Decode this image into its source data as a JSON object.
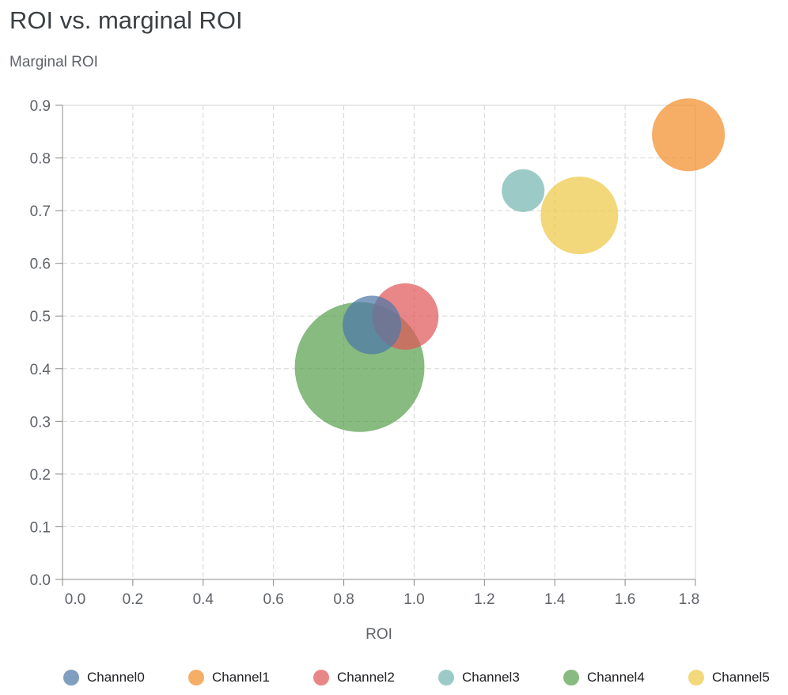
{
  "chart_data": {
    "type": "scatter",
    "subtype": "bubble",
    "title": "ROI vs. marginal ROI",
    "xlabel": "ROI",
    "ylabel": "Marginal ROI",
    "xlim": [
      0,
      1.8
    ],
    "ylim": [
      0,
      0.9
    ],
    "xticks": [
      "0.0",
      "0.2",
      "0.4",
      "0.6",
      "0.8",
      "1.0",
      "1.2",
      "1.4",
      "1.6",
      "1.8"
    ],
    "yticks": [
      "0.0",
      "0.1",
      "0.2",
      "0.3",
      "0.4",
      "0.5",
      "0.6",
      "0.7",
      "0.8",
      "0.9"
    ],
    "grid": true,
    "legend_position": "bottom",
    "series": [
      {
        "name": "Channel0",
        "x": 0.88,
        "y": 0.483,
        "size": 13.7,
        "color": "#4e79a7"
      },
      {
        "name": "Channel1",
        "x": 1.78,
        "y": 0.844,
        "size": 21.2,
        "color": "#f28e2b"
      },
      {
        "name": "Channel2",
        "x": 0.975,
        "y": 0.499,
        "size": 17.6,
        "color": "#e15759"
      },
      {
        "name": "Channel3",
        "x": 1.31,
        "y": 0.738,
        "size": 7.3,
        "color": "#76b7b2"
      },
      {
        "name": "Channel4",
        "x": 0.845,
        "y": 0.403,
        "size": 67.2,
        "color": "#59a14f"
      },
      {
        "name": "Channel5",
        "x": 1.47,
        "y": 0.691,
        "size": 24.0,
        "color": "#edc948"
      }
    ]
  }
}
